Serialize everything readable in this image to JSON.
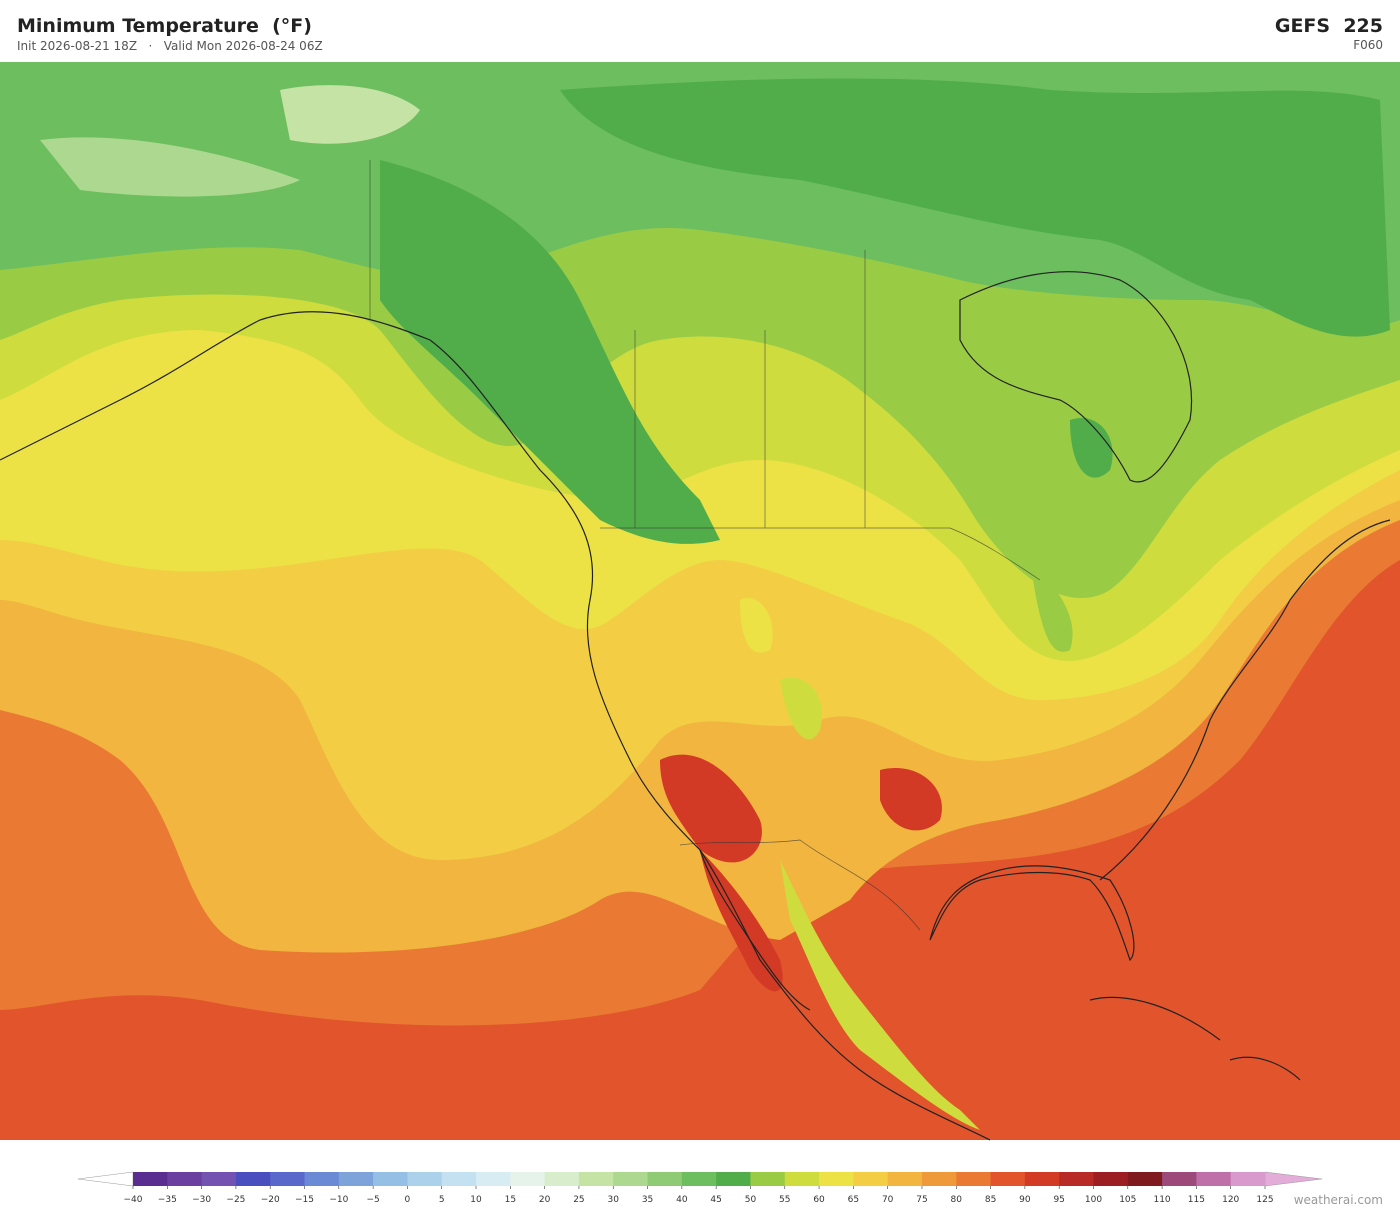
{
  "header": {
    "title": "Minimum Temperature  (°F)",
    "init": "Init 2026-08-21 18Z",
    "separator": "·",
    "valid": "Valid Mon 2026-08-24 06Z",
    "model": "GEFS  225",
    "forecast_hour": "F060"
  },
  "colorbar": {
    "ticks": [
      "−40",
      "−35",
      "−30",
      "−25",
      "−20",
      "−15",
      "−10",
      "−5",
      "0",
      "5",
      "10",
      "15",
      "20",
      "25",
      "30",
      "35",
      "40",
      "45",
      "50",
      "55",
      "60",
      "65",
      "70",
      "75",
      "80",
      "85",
      "90",
      "95",
      "100",
      "105",
      "110",
      "115",
      "120",
      "125"
    ],
    "colors": [
      "#5a2d91",
      "#6b3fa0",
      "#7352b2",
      "#4a4fc0",
      "#5a68cc",
      "#6a8ad5",
      "#7ea3db",
      "#95bfe4",
      "#abd2ea",
      "#c3e1f0",
      "#d7ecf3",
      "#e6f3ea",
      "#d7edcb",
      "#c4e3a4",
      "#acd88f",
      "#8ecb74",
      "#6cbe5e",
      "#51ad4a",
      "#9acb45",
      "#cfdc3e",
      "#ece245",
      "#f3ce45",
      "#f1b540",
      "#ee9a3a",
      "#ea7a33",
      "#e2542c",
      "#d23a26",
      "#b82a25",
      "#9c1e22",
      "#7f1a1f",
      "#9c4a7a",
      "#c070a8",
      "#d899cc"
    ],
    "under_color": "#ffffff",
    "over_color": "#e3acd9"
  },
  "watermark": "weatherai.com"
}
